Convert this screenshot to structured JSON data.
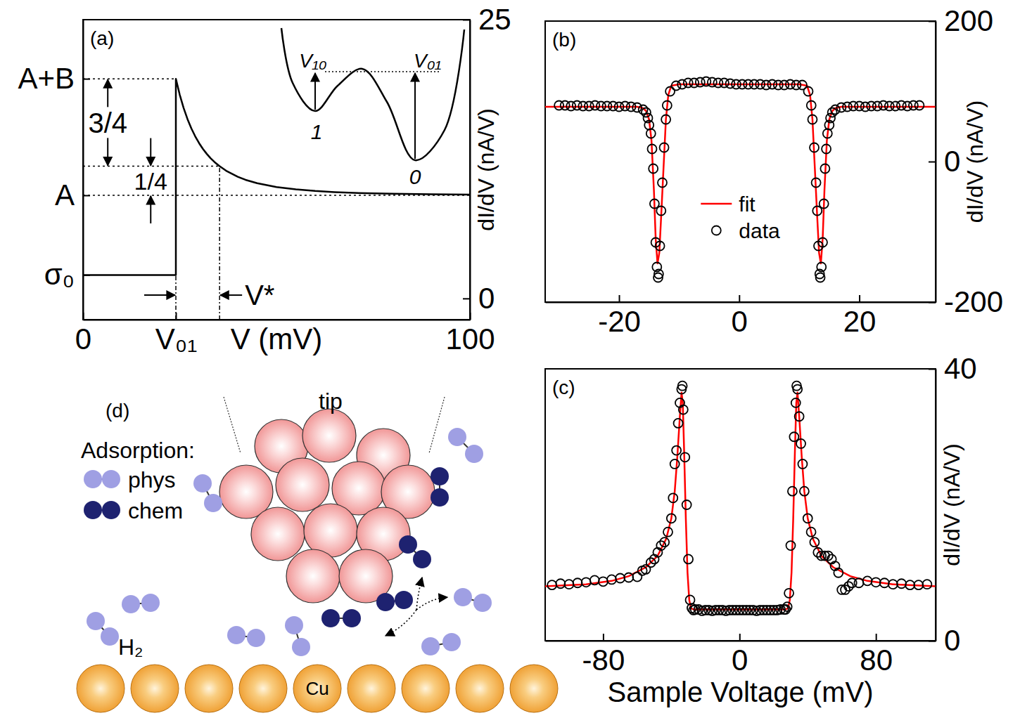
{
  "chart_data": [
    {
      "type": "line",
      "title": "(a)",
      "x_label": "V (mV)",
      "y_label": "dI/dV (nA/V)",
      "xlim": [
        0,
        100
      ],
      "xticks": [
        0,
        {
          "value": 24,
          "label": "V₀₁"
        },
        100
      ],
      "ylim": [
        -1.9,
        25
      ],
      "yticks": [
        0,
        25
      ],
      "y2lim": [
        -1.9,
        25
      ],
      "y2ticks": [
        {
          "value": 2.1,
          "label": "σ₀"
        },
        {
          "value": 9.25,
          "label": "A"
        },
        {
          "value": 19.7,
          "label": "A+B"
        }
      ],
      "x": [
        0,
        24,
        24,
        25,
        26,
        27,
        28,
        29,
        30,
        31,
        32,
        33,
        34,
        35.3,
        37,
        40,
        42,
        45,
        50,
        55,
        60,
        65,
        70,
        80,
        90,
        100
      ],
      "values": [
        2.1,
        2.1,
        19.7,
        18.27,
        17.09,
        16.09,
        15.25,
        14.54,
        13.93,
        13.41,
        12.96,
        12.57,
        12.23,
        11.86,
        11.45,
        10.91,
        10.64,
        10.34,
        9.99,
        9.78,
        9.64,
        9.54,
        9.47,
        9.39,
        9.34,
        9.31
      ],
      "color": "#000000",
      "line_style": "solid",
      "guides": {
        "horizontal": [
          {
            "y": 19.7,
            "x_to": 24
          },
          {
            "y": 11.86,
            "x_to": 35.3
          },
          {
            "y": 9.25,
            "x_to": 100
          }
        ],
        "vertical": [
          {
            "x": 24,
            "y_to": 2.1
          },
          {
            "x": 35.3,
            "y_to": 11.86
          }
        ]
      },
      "annotations": [
        {
          "text": "3/4",
          "x": 6.4,
          "y_from": 11.86,
          "y_to": 19.7
        },
        {
          "text": "1/4",
          "x": 17.5,
          "y_from": 9.25,
          "y_to": 11.86
        },
        {
          "text": "V*",
          "x_from": 24,
          "x_to": 35.3,
          "y": 0.3
        }
      ],
      "inset": {
        "left_label": "V₁₀",
        "right_label": "V₀₁",
        "left_well": "1",
        "right_well": "0"
      }
    },
    {
      "type": "scatter",
      "title": "(b)",
      "y_label": "dI/dV (nA/V)",
      "xlim": [
        -32.3,
        32.7
      ],
      "xticks": [
        -20,
        0,
        20
      ],
      "ylim": [
        -200,
        200
      ],
      "yticks": [
        -200,
        0,
        200
      ],
      "legend": "center",
      "series": [
        {
          "name": "fit",
          "type": "line",
          "color": "#ff0000",
          "line_style": "solid",
          "x": [
            -32.3,
            -17,
            -16,
            -15.5,
            -15,
            -14.6,
            -14.2,
            -13.9,
            -13.6,
            -13.3,
            -13,
            -12.6,
            -12.2,
            -11.8,
            -11.3,
            -10,
            10,
            11.3,
            11.8,
            12.2,
            12.6,
            13,
            13.3,
            13.6,
            13.9,
            14.2,
            14.6,
            15,
            15.5,
            16,
            17,
            32.7
          ],
          "values": [
            78,
            78,
            76,
            72,
            60,
            30,
            -40,
            -110,
            -145,
            -130,
            -80,
            -10,
            60,
            95,
            108,
            110,
            110,
            108,
            95,
            60,
            -10,
            -80,
            -130,
            -145,
            -110,
            -40,
            30,
            60,
            72,
            76,
            78,
            78
          ]
        },
        {
          "name": "data",
          "type": "scatter",
          "color": "#000000",
          "marker": "circle",
          "x": [
            -30,
            -29,
            -28,
            -27,
            -26,
            -25,
            -24,
            -23,
            -22,
            -21,
            -20,
            -19,
            -18,
            -17,
            -16,
            -15.5,
            -15.2,
            -15,
            -14.7,
            -14.5,
            -14.3,
            -14.1,
            -13.9,
            -13.7,
            -13.5,
            -13.4,
            -13.2,
            -13,
            -12.8,
            -12.5,
            -12.2,
            -12,
            -11.5,
            -10.5,
            -9.5,
            -8.5,
            -7.5,
            -6.5,
            -5.5,
            -4.5,
            -3.5,
            -2.5,
            -1.5,
            -0.5,
            0.5,
            1.5,
            2.5,
            3.5,
            4.5,
            5.5,
            6.5,
            7.5,
            8.5,
            9.5,
            10.5,
            11.5,
            12,
            12.2,
            12.5,
            12.8,
            13,
            13.2,
            13.4,
            13.5,
            13.7,
            13.9,
            14.1,
            14.3,
            14.5,
            14.7,
            15,
            15.2,
            15.5,
            16,
            17,
            18,
            19,
            20,
            21,
            22,
            23,
            24,
            25,
            26,
            27,
            28,
            29,
            30
          ],
          "values": [
            80,
            80,
            79,
            80,
            79,
            79,
            80,
            79,
            79,
            79,
            78,
            79,
            78,
            77,
            74,
            70,
            62,
            52,
            40,
            18,
            -10,
            -60,
            -115,
            -150,
            -165,
            -160,
            -120,
            -70,
            -30,
            20,
            60,
            80,
            100,
            108,
            110,
            112,
            112,
            113,
            114,
            113,
            112,
            112,
            111,
            110,
            110,
            110,
            110,
            110,
            109,
            110,
            109,
            109,
            110,
            109,
            109,
            100,
            80,
            60,
            20,
            -30,
            -70,
            -120,
            -160,
            -165,
            -150,
            -115,
            -60,
            -10,
            18,
            40,
            52,
            62,
            70,
            74,
            77,
            78,
            79,
            79,
            78,
            79,
            79,
            80,
            79,
            79,
            80,
            79,
            80,
            80
          ]
        }
      ]
    },
    {
      "type": "scatter",
      "title": "(c)",
      "x_label": "Sample Voltage (mV)",
      "y_label": "dI/dV (nA/V)",
      "xlim": [
        -114,
        115
      ],
      "xticks": [
        -80,
        0,
        80
      ],
      "ylim": [
        0,
        40
      ],
      "yticks": [
        0,
        40
      ],
      "series": [
        {
          "name": "fit",
          "type": "line",
          "color": "#ff0000",
          "line_style": "solid",
          "x": [
            -114,
            -90,
            -75,
            -65,
            -55,
            -48,
            -43,
            -40,
            -38,
            -36.5,
            -35,
            -34,
            -33.3,
            -32.5,
            -31.5,
            -30.5,
            -29.5,
            -28.5,
            -27,
            27,
            28.5,
            29.5,
            30.5,
            31.5,
            32.5,
            33.3,
            34,
            35,
            36.5,
            38,
            40,
            43,
            48,
            55,
            65,
            75,
            90,
            115
          ],
          "values": [
            8,
            8.3,
            8.8,
            9.5,
            10.8,
            12.5,
            15,
            18,
            22,
            27,
            33,
            36.5,
            35,
            28,
            18,
            10,
            6,
            4.8,
            4.6,
            4.6,
            4.8,
            6,
            10,
            18,
            28,
            35,
            36.5,
            33,
            27,
            22,
            18,
            15,
            12.5,
            10.8,
            9.5,
            8.8,
            8.3,
            8
          ]
        },
        {
          "name": "data",
          "type": "scatter",
          "color": "#000000",
          "marker": "circle",
          "x": [
            -110,
            -105,
            -100,
            -95,
            -90,
            -85,
            -80,
            -75,
            -70,
            -65,
            -60,
            -57,
            -55,
            -52,
            -50,
            -48,
            -46,
            -44,
            -42,
            -40,
            -39,
            -38,
            -37,
            -36,
            -35,
            -34,
            -33.5,
            -33,
            -32,
            -31,
            -30,
            -29,
            -28,
            -27,
            -26,
            -24,
            -22,
            -20,
            -18,
            -16,
            -14,
            -12,
            -10,
            -8,
            -6,
            -4,
            -2,
            0,
            2,
            4,
            6,
            8,
            10,
            12,
            14,
            16,
            18,
            20,
            22,
            24,
            26,
            27,
            28,
            29,
            30,
            31,
            32,
            33,
            33.5,
            34,
            35,
            36,
            37,
            38,
            40,
            42,
            44,
            46,
            48,
            50,
            52,
            54,
            56,
            58,
            60,
            62,
            64,
            66,
            70,
            75,
            80,
            85,
            90,
            95,
            100,
            105,
            110
          ],
          "values": [
            8.2,
            8.4,
            8.3,
            8.5,
            8.6,
            8.9,
            8.7,
            9.0,
            9.2,
            9.3,
            9.4,
            10.3,
            10.5,
            11.5,
            12,
            13,
            14,
            14.5,
            16,
            18,
            21,
            26,
            28,
            32,
            35,
            37,
            37.5,
            34,
            27,
            20,
            12,
            6,
            4.8,
            4.5,
            4.6,
            4.6,
            4.4,
            4.5,
            4.5,
            4.4,
            4.5,
            4.5,
            4.5,
            4.4,
            4.5,
            4.5,
            4.5,
            4.5,
            4.5,
            4.5,
            4.5,
            4.5,
            4.4,
            4.5,
            4.5,
            4.5,
            4.5,
            4.5,
            4.5,
            4.6,
            4.6,
            4.6,
            5,
            7,
            14,
            22,
            30,
            35,
            37.5,
            37,
            33,
            29,
            26,
            22,
            18,
            16,
            14.5,
            13,
            12.5,
            12.5,
            12.5,
            12,
            11,
            10,
            7.5,
            7.5,
            8,
            8.5,
            8.5,
            8.8,
            8.6,
            8.5,
            8.3,
            8.4,
            8.2,
            8.2,
            8.3
          ]
        }
      ]
    }
  ],
  "diagram": {
    "title": "(d)",
    "legend_title": "Adsorption:",
    "legend": [
      {
        "label": "phys",
        "color": "#9f9fe3"
      },
      {
        "label": "chem",
        "color": "#1e2270"
      }
    ],
    "tip": "tip",
    "gas": "H₂",
    "surface": "Cu"
  }
}
